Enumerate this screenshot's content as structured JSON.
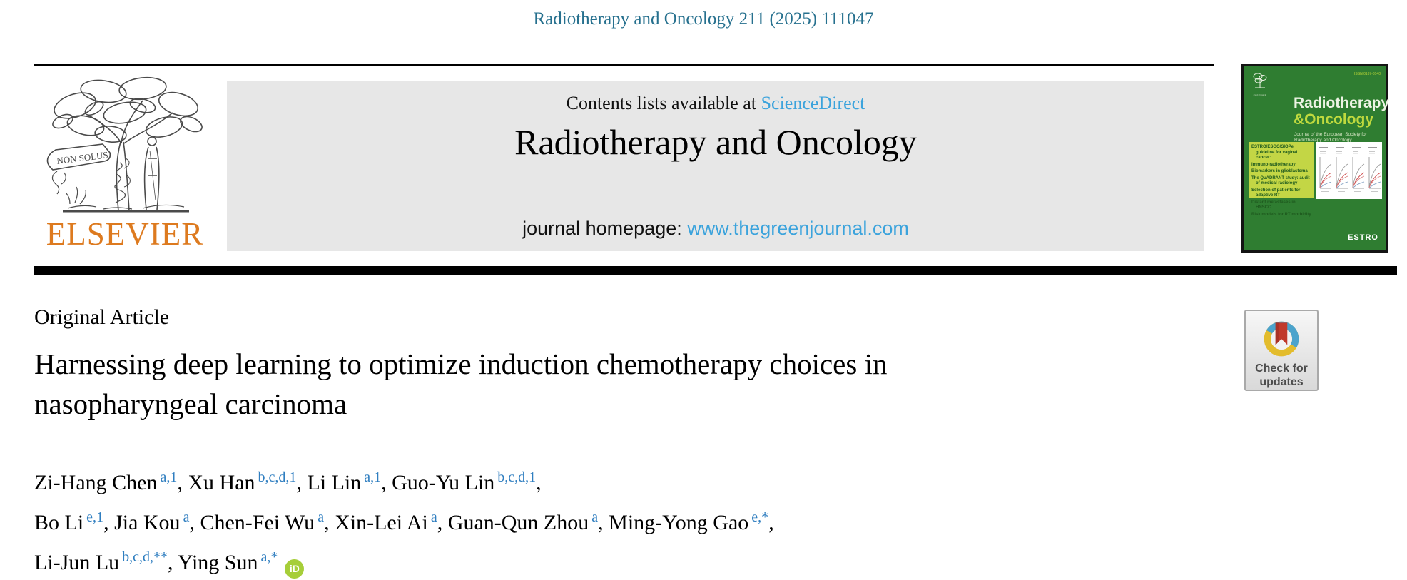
{
  "page": {
    "citation": "Radiotherapy and Oncology 211 (2025) 111047"
  },
  "header": {
    "publisher": "ELSEVIER",
    "banner_motto": "NON SOLUS",
    "contents_prefix": "Contents lists available at ",
    "contents_link": "ScienceDirect",
    "journal_title": "Radiotherapy and Oncology",
    "homepage_prefix": "journal homepage: ",
    "homepage_link": "www.thegreenjournal.com"
  },
  "cover": {
    "logo_text": "ELSEVIER",
    "issn": "ISSN 0167-8140",
    "title_line1": "Radiotherapy",
    "title_line2": "&Oncology",
    "subtitle": "Journal of the European Society for Radiotherapy and Oncology",
    "toc_items": [
      "ESTRO/ESGO/SIOPe guideline for vaginal cancer:",
      "Immuno-radiotherapy",
      "Biomarkers in glioblastoma",
      "The QuADRANT study: audit of medical radiology",
      "Selection of patients for adaptive RT",
      "Distant metastases in HNSCC",
      "Risk models for RT morbidity"
    ],
    "footer": "ESTRO"
  },
  "article": {
    "kicker": "Original Article",
    "title_line1": "Harnessing deep learning to optimize induction chemotherapy choices in",
    "title_line2": "nasopharyngeal carcinoma",
    "author_lines": [
      [
        {
          "text": "Zi-Hang Chen"
        },
        {
          "sup": "a,1"
        },
        {
          "text": ", Xu Han"
        },
        {
          "sup": "b,c,d,1"
        },
        {
          "text": ", Li Lin"
        },
        {
          "sup": "a,1"
        },
        {
          "text": ", Guo-Yu Lin"
        },
        {
          "sup": "b,c,d,1"
        },
        {
          "text": ","
        }
      ],
      [
        {
          "text": "Bo Li"
        },
        {
          "sup": "e,1"
        },
        {
          "text": ", Jia Kou"
        },
        {
          "sup": "a"
        },
        {
          "text": ", Chen-Fei Wu"
        },
        {
          "sup": "a"
        },
        {
          "text": ", Xin-Lei Ai"
        },
        {
          "sup": "a"
        },
        {
          "text": ", Guan-Qun Zhou"
        },
        {
          "sup": "a"
        },
        {
          "text": ", Ming-Yong Gao"
        },
        {
          "sup": "e,*"
        },
        {
          "text": ","
        }
      ],
      [
        {
          "text": "Li-Jun Lu"
        },
        {
          "sup": "b,c,d,**"
        },
        {
          "text": ", Ying Sun"
        },
        {
          "sup": "a,*"
        },
        {
          "icon": "orcid"
        }
      ]
    ]
  },
  "badges": {
    "check_updates_line1": "Check for",
    "check_updates_line2": "updates",
    "orcid_label": "iD"
  },
  "colors": {
    "citation_teal": "#26708E",
    "link_blue": "#3BA3DC",
    "superscript_blue": "#2F7EC0",
    "elsevier_orange": "#DD7A1F",
    "banner_gray": "#E7E7E7",
    "cover_green": "#2F7D31",
    "cover_lime": "#C3D645",
    "orcid_green": "#A6CE39",
    "badge_blue": "#4BA3CC",
    "badge_yellow": "#E3BC2C",
    "badge_red": "#C0392B"
  }
}
